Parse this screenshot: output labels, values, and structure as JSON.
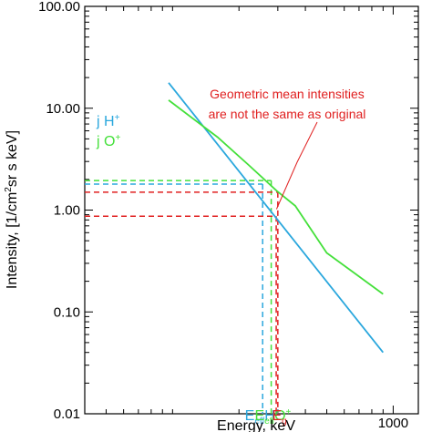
{
  "chart_data": {
    "type": "line",
    "xlabel": "Energy, keV",
    "ylabel_parts": {
      "pre": "Intensity, [1/cm",
      "sup": "2",
      "post": "sr s keV]"
    },
    "x_scale": "log",
    "y_scale": "log",
    "xlim": [
      40,
      1300
    ],
    "ylim": [
      0.01,
      100
    ],
    "y_ticks": [
      {
        "value": 100,
        "label": "100.00"
      },
      {
        "value": 10,
        "label": "10.00"
      },
      {
        "value": 1,
        "label": "1.00"
      },
      {
        "value": 0.1,
        "label": "0.10"
      },
      {
        "value": 0.01,
        "label": "0.01"
      }
    ],
    "x_ticks": [
      {
        "value": 1000,
        "label": "1000"
      }
    ],
    "series": [
      {
        "name": "j H+",
        "color": "#2aa7dd",
        "x": [
          96,
          900
        ],
        "y": [
          17.8,
          0.04
        ]
      },
      {
        "name": "j O+",
        "color": "#44e03a",
        "x": [
          96,
          160,
          220,
          296,
          360,
          500,
          900
        ],
        "y": [
          12.0,
          5.2,
          2.8,
          1.55,
          1.1,
          0.38,
          0.15
        ]
      }
    ],
    "legend": [
      {
        "pre": "j H",
        "sup": "+",
        "color": "#2aa7dd"
      },
      {
        "pre": "j O",
        "sup": "+",
        "color": "#44e03a"
      }
    ],
    "reference_lines": [
      {
        "color": "#2aa7dd",
        "y": 1.8,
        "x": 256
      },
      {
        "color": "#44e03a",
        "y": 1.95,
        "x": 280
      },
      {
        "color": "#e02020",
        "y": 1.5,
        "x": 300
      },
      {
        "color": "#e02020",
        "y": 0.87,
        "x": 295
      }
    ],
    "x_markers": [
      {
        "x": 256,
        "color": "#2aa7dd",
        "main": "E",
        "sub": "eff",
        "tail": "H",
        "sup": "+"
      },
      {
        "x": 285,
        "color": "#44e03a",
        "main": "E",
        "sub": "eff",
        "tail": "O",
        "sup": "+"
      },
      {
        "x": 305,
        "color": "#e02020",
        "main": "E",
        "sub": "g",
        "tail": "",
        "sup": ""
      }
    ],
    "annotation": {
      "lines": [
        "Geometric mean intensities",
        "are not the same as original"
      ],
      "color": "#e02020",
      "arrow_to": {
        "x": 296,
        "y": 1.02
      }
    }
  }
}
